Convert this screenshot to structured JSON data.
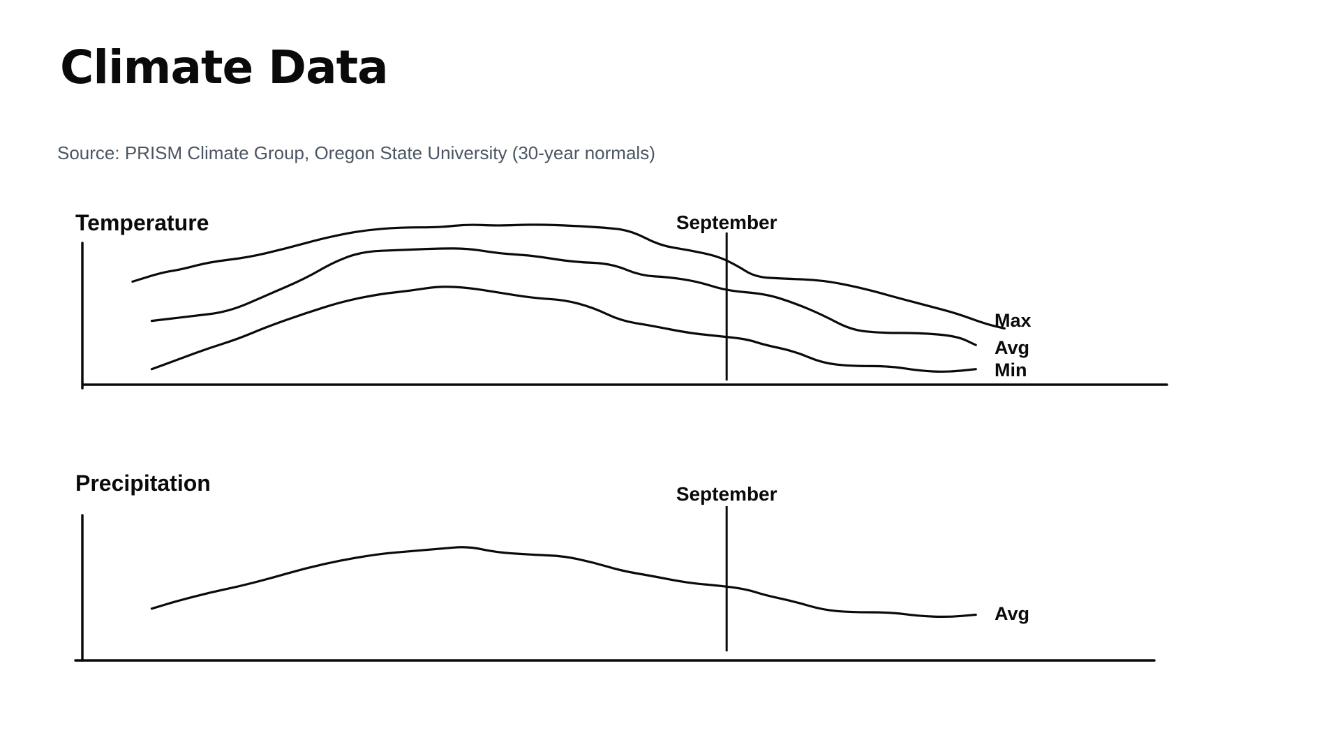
{
  "page": {
    "title": "Climate Data",
    "source": "Source: PRISM Climate Group, Oregon State University (30-year normals)"
  },
  "colors": {
    "ink": "#0a0a0a",
    "source_text": "#4b5563",
    "background": "#ffffff"
  },
  "chart_data": [
    {
      "type": "line",
      "title": "Temperature",
      "marker_label": "September",
      "marker_x": 0.66,
      "xlim": [
        0,
        1
      ],
      "ylim": [
        0,
        1
      ],
      "grid": false,
      "series": [
        {
          "name": "Max",
          "points": [
            [
              0.04,
              0.66
            ],
            [
              0.07,
              0.72
            ],
            [
              0.09,
              0.74
            ],
            [
              0.12,
              0.79
            ],
            [
              0.16,
              0.82
            ],
            [
              0.2,
              0.88
            ],
            [
              0.24,
              0.95
            ],
            [
              0.28,
              1.0
            ],
            [
              0.32,
              1.02
            ],
            [
              0.36,
              1.02
            ],
            [
              0.39,
              1.04
            ],
            [
              0.42,
              1.03
            ],
            [
              0.46,
              1.04
            ],
            [
              0.5,
              1.03
            ],
            [
              0.53,
              1.02
            ],
            [
              0.56,
              1.0
            ],
            [
              0.59,
              0.9
            ],
            [
              0.62,
              0.87
            ],
            [
              0.65,
              0.83
            ],
            [
              0.67,
              0.77
            ],
            [
              0.69,
              0.69
            ],
            [
              0.72,
              0.68
            ],
            [
              0.76,
              0.67
            ],
            [
              0.8,
              0.62
            ],
            [
              0.84,
              0.55
            ],
            [
              0.87,
              0.5
            ],
            [
              0.9,
              0.45
            ],
            [
              0.93,
              0.38
            ],
            [
              0.95,
              0.35
            ]
          ]
        },
        {
          "name": "Avg",
          "points": [
            [
              0.06,
              0.4
            ],
            [
              0.1,
              0.43
            ],
            [
              0.14,
              0.46
            ],
            [
              0.18,
              0.57
            ],
            [
              0.22,
              0.68
            ],
            [
              0.25,
              0.79
            ],
            [
              0.28,
              0.86
            ],
            [
              0.32,
              0.87
            ],
            [
              0.36,
              0.88
            ],
            [
              0.39,
              0.88
            ],
            [
              0.42,
              0.85
            ],
            [
              0.44,
              0.84
            ],
            [
              0.46,
              0.83
            ],
            [
              0.5,
              0.79
            ],
            [
              0.54,
              0.78
            ],
            [
              0.57,
              0.7
            ],
            [
              0.6,
              0.69
            ],
            [
              0.63,
              0.66
            ],
            [
              0.66,
              0.6
            ],
            [
              0.7,
              0.58
            ],
            [
              0.73,
              0.52
            ],
            [
              0.76,
              0.44
            ],
            [
              0.79,
              0.34
            ],
            [
              0.82,
              0.32
            ],
            [
              0.86,
              0.32
            ],
            [
              0.9,
              0.3
            ],
            [
              0.92,
              0.24
            ]
          ]
        },
        {
          "name": "Min",
          "points": [
            [
              0.06,
              0.08
            ],
            [
              0.09,
              0.15
            ],
            [
              0.12,
              0.22
            ],
            [
              0.15,
              0.28
            ],
            [
              0.18,
              0.36
            ],
            [
              0.22,
              0.45
            ],
            [
              0.26,
              0.53
            ],
            [
              0.3,
              0.58
            ],
            [
              0.33,
              0.6
            ],
            [
              0.36,
              0.63
            ],
            [
              0.39,
              0.62
            ],
            [
              0.42,
              0.59
            ],
            [
              0.46,
              0.55
            ],
            [
              0.49,
              0.54
            ],
            [
              0.52,
              0.49
            ],
            [
              0.55,
              0.4
            ],
            [
              0.58,
              0.37
            ],
            [
              0.62,
              0.32
            ],
            [
              0.65,
              0.3
            ],
            [
              0.68,
              0.28
            ],
            [
              0.7,
              0.24
            ],
            [
              0.73,
              0.2
            ],
            [
              0.76,
              0.12
            ],
            [
              0.79,
              0.1
            ],
            [
              0.83,
              0.1
            ],
            [
              0.86,
              0.07
            ],
            [
              0.89,
              0.06
            ],
            [
              0.92,
              0.08
            ]
          ]
        }
      ]
    },
    {
      "type": "line",
      "title": "Precipitation",
      "marker_label": "September",
      "marker_x": 0.66,
      "xlim": [
        0,
        1
      ],
      "ylim": [
        0,
        1
      ],
      "grid": false,
      "series": [
        {
          "name": "Avg",
          "points": [
            [
              0.06,
              0.39
            ],
            [
              0.09,
              0.46
            ],
            [
              0.12,
              0.52
            ],
            [
              0.15,
              0.57
            ],
            [
              0.18,
              0.63
            ],
            [
              0.22,
              0.72
            ],
            [
              0.26,
              0.79
            ],
            [
              0.3,
              0.84
            ],
            [
              0.33,
              0.86
            ],
            [
              0.36,
              0.88
            ],
            [
              0.39,
              0.9
            ],
            [
              0.42,
              0.85
            ],
            [
              0.46,
              0.83
            ],
            [
              0.49,
              0.82
            ],
            [
              0.52,
              0.77
            ],
            [
              0.55,
              0.7
            ],
            [
              0.58,
              0.66
            ],
            [
              0.62,
              0.6
            ],
            [
              0.65,
              0.58
            ],
            [
              0.68,
              0.55
            ],
            [
              0.7,
              0.5
            ],
            [
              0.73,
              0.45
            ],
            [
              0.76,
              0.38
            ],
            [
              0.79,
              0.36
            ],
            [
              0.83,
              0.36
            ],
            [
              0.86,
              0.33
            ],
            [
              0.89,
              0.32
            ],
            [
              0.92,
              0.34
            ]
          ]
        }
      ]
    }
  ]
}
